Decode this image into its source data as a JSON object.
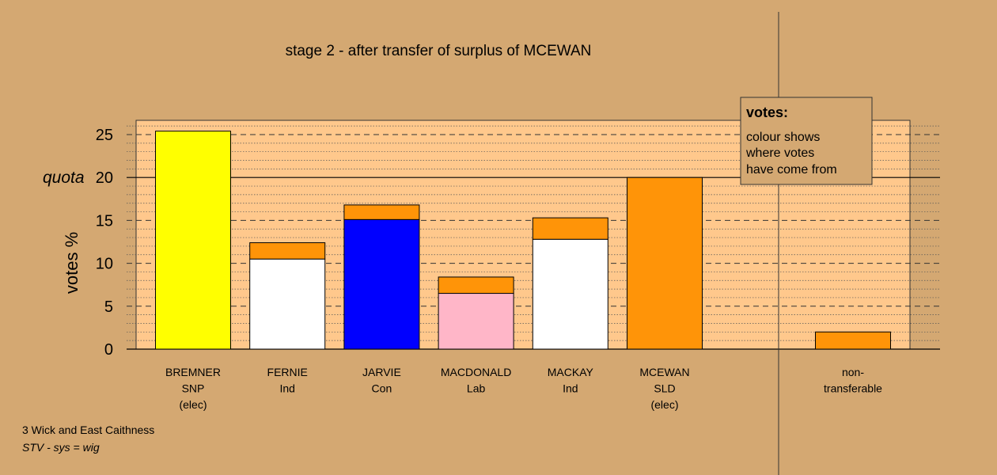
{
  "chart_data": {
    "type": "bar",
    "title": "stage 2 - after transfer of surplus of MCEWAN",
    "ylabel": "votes %",
    "ylim": [
      0,
      26
    ],
    "yticks": [
      0,
      5,
      10,
      15,
      20,
      25
    ],
    "quota": {
      "label": "quota",
      "value": 20
    },
    "categories": [
      {
        "lines": [
          "BREMNER",
          "SNP",
          "(elec)"
        ]
      },
      {
        "lines": [
          "FERNIE",
          "Ind"
        ]
      },
      {
        "lines": [
          "JARVIE",
          "Con"
        ]
      },
      {
        "lines": [
          "MACDONALD",
          "Lab"
        ]
      },
      {
        "lines": [
          "MACKAY",
          "Ind"
        ]
      },
      {
        "lines": [
          "MCEWAN",
          "SLD",
          "(elec)"
        ]
      },
      {
        "lines": [
          "non-",
          "transferable"
        ]
      }
    ],
    "series": [
      {
        "values": [
          25.4,
          10.5,
          15.1,
          6.5,
          12.8,
          20.0,
          0.0
        ],
        "colors": [
          "#ffff00",
          "#ffffff",
          "#0000ff",
          "#ffb6c8",
          "#ffffff",
          "#ff9408",
          "#ff9408"
        ]
      },
      {
        "values": [
          0.0,
          1.9,
          1.7,
          1.9,
          2.5,
          0.0,
          2.0
        ],
        "colors": [
          "#ff9408",
          "#ff9408",
          "#ff9408",
          "#ff9408",
          "#ff9408",
          "#ff9408",
          "#ff9408"
        ]
      }
    ]
  },
  "legend": {
    "title": "votes:",
    "lines": [
      "colour shows",
      "where votes",
      "have come from"
    ]
  },
  "footer": {
    "line1": "3 Wick and East Caithness",
    "line2": "STV - sys = wig"
  },
  "colors": {
    "background": "#d4a872",
    "plot_background": "#ffc88c",
    "bar_outline": "#000000"
  }
}
